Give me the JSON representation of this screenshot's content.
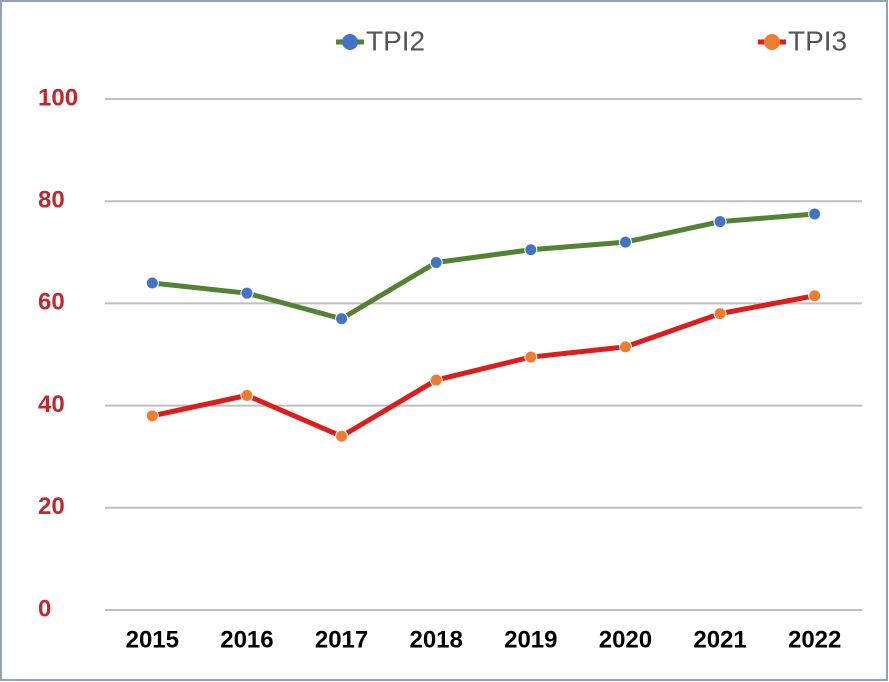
{
  "chart_data": {
    "type": "line",
    "categories": [
      "2015",
      "2016",
      "2017",
      "2018",
      "2019",
      "2020",
      "2021",
      "2022"
    ],
    "series": [
      {
        "name": "TPI2",
        "color": "#548235",
        "marker_color": "#4472c4",
        "values": [
          64,
          62,
          57,
          68,
          70.5,
          72,
          76,
          77.5
        ]
      },
      {
        "name": "TPI3",
        "color": "#dd1c1c",
        "marker_color": "#ed7d31",
        "values": [
          38,
          42,
          34,
          45,
          49.5,
          51.5,
          58,
          61.5
        ]
      }
    ],
    "ylim": [
      0,
      100
    ],
    "yticks": [
      0,
      20,
      40,
      60,
      80,
      100
    ],
    "grid": true,
    "legend": "top"
  }
}
